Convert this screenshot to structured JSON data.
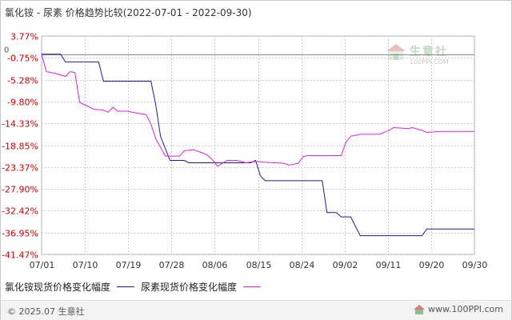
{
  "title": "氯化铵 - 尿素 价格趋势比较(2022-07-01 - 2022-09-30)",
  "watermark": {
    "cn": "生意社",
    "en": "100PPI.COM"
  },
  "footer": {
    "copyright": "© 2025.07 生意社",
    "site": "www.100PPI.com"
  },
  "colors": {
    "series1": "#1a1aa6",
    "series2": "#e61ee6",
    "grid": "#cccccc",
    "zero_line": "#888888"
  },
  "chart_data": {
    "type": "line",
    "y_ticks": [
      "3.77%",
      "-0.75%",
      "-5.28%",
      "-9.80%",
      "-14.33%",
      "-18.85%",
      "-23.37%",
      "-27.90%",
      "-32.42%",
      "-36.95%",
      "-41.47%"
    ],
    "y_tick_values": [
      3.77,
      -0.75,
      -5.28,
      -9.8,
      -14.33,
      -18.85,
      -23.37,
      -27.9,
      -32.42,
      -36.95,
      -41.47
    ],
    "zero_label": "0",
    "ylim": [
      -41.47,
      3.77
    ],
    "x_ticks": [
      "07/01",
      "07/10",
      "07/19",
      "07/28",
      "08/06",
      "08/15",
      "08/24",
      "09/02",
      "09/11",
      "09/20",
      "09/30"
    ],
    "grid": true,
    "legend_position": "bottom-left",
    "series": [
      {
        "name": "氯化铵现货价格变化幅度",
        "points": [
          [
            "07/01",
            0
          ],
          [
            "07/05",
            0
          ],
          [
            "07/06",
            -1.6
          ],
          [
            "07/13",
            -1.6
          ],
          [
            "07/14",
            -5.6
          ],
          [
            "07/24",
            -5.6
          ],
          [
            "07/25",
            -10.5
          ],
          [
            "07/26",
            -17.0
          ],
          [
            "07/28",
            -22.0
          ],
          [
            "07/31",
            -22.0
          ],
          [
            "08/01",
            -22.5
          ],
          [
            "08/14",
            -22.5
          ],
          [
            "08/15",
            -22.0
          ],
          [
            "08/16",
            -25.2
          ],
          [
            "08/17",
            -26.2
          ],
          [
            "08/29",
            -26.2
          ],
          [
            "08/30",
            -32.8
          ],
          [
            "09/01",
            -32.8
          ],
          [
            "09/02",
            -33.7
          ],
          [
            "09/04",
            -33.7
          ],
          [
            "09/06",
            -37.6
          ],
          [
            "09/19",
            -37.6
          ],
          [
            "09/20",
            -36.2
          ],
          [
            "09/21",
            -36.2
          ],
          [
            "09/30",
            -36.2
          ]
        ]
      },
      {
        "name": "尿素现货价格变化幅度",
        "points": [
          [
            "07/01",
            0
          ],
          [
            "07/02",
            -3.6
          ],
          [
            "07/04",
            -4.0
          ],
          [
            "07/06",
            -4.6
          ],
          [
            "07/07",
            -3.6
          ],
          [
            "07/08",
            -3.8
          ],
          [
            "07/09",
            -10.0
          ],
          [
            "07/12",
            -11.4
          ],
          [
            "07/14",
            -11.6
          ],
          [
            "07/15",
            -12.0
          ],
          [
            "07/16",
            -11.0
          ],
          [
            "07/17",
            -11.8
          ],
          [
            "07/19",
            -11.8
          ],
          [
            "07/21",
            -12.2
          ],
          [
            "07/23",
            -12.5
          ],
          [
            "07/24",
            -14.5
          ],
          [
            "07/25",
            -17.5
          ],
          [
            "07/27",
            -21.1
          ],
          [
            "07/30",
            -21.1
          ],
          [
            "07/31",
            -20.0
          ],
          [
            "08/02",
            -19.8
          ],
          [
            "08/04",
            -20.5
          ],
          [
            "08/05",
            -21.0
          ],
          [
            "08/06",
            -22.0
          ],
          [
            "08/07",
            -23.2
          ],
          [
            "08/08",
            -22.6
          ],
          [
            "08/09",
            -22.0
          ],
          [
            "08/11",
            -22.0
          ],
          [
            "08/13",
            -22.5
          ],
          [
            "08/15",
            -22.2
          ],
          [
            "08/17",
            -22.4
          ],
          [
            "08/21",
            -22.6
          ],
          [
            "08/22",
            -23.0
          ],
          [
            "08/24",
            -22.6
          ],
          [
            "08/25",
            -21.2
          ],
          [
            "08/26",
            -21.0
          ],
          [
            "09/02",
            -21.0
          ],
          [
            "09/03",
            -18.2
          ],
          [
            "09/04",
            -17.0
          ],
          [
            "09/06",
            -16.6
          ],
          [
            "09/10",
            -16.6
          ],
          [
            "09/12",
            -15.8
          ],
          [
            "09/13",
            -15.2
          ],
          [
            "09/16",
            -15.4
          ],
          [
            "09/17",
            -15.2
          ],
          [
            "09/19",
            -15.8
          ],
          [
            "09/20",
            -16.2
          ],
          [
            "09/23",
            -16.0
          ],
          [
            "09/30",
            -16.0
          ]
        ]
      }
    ]
  }
}
